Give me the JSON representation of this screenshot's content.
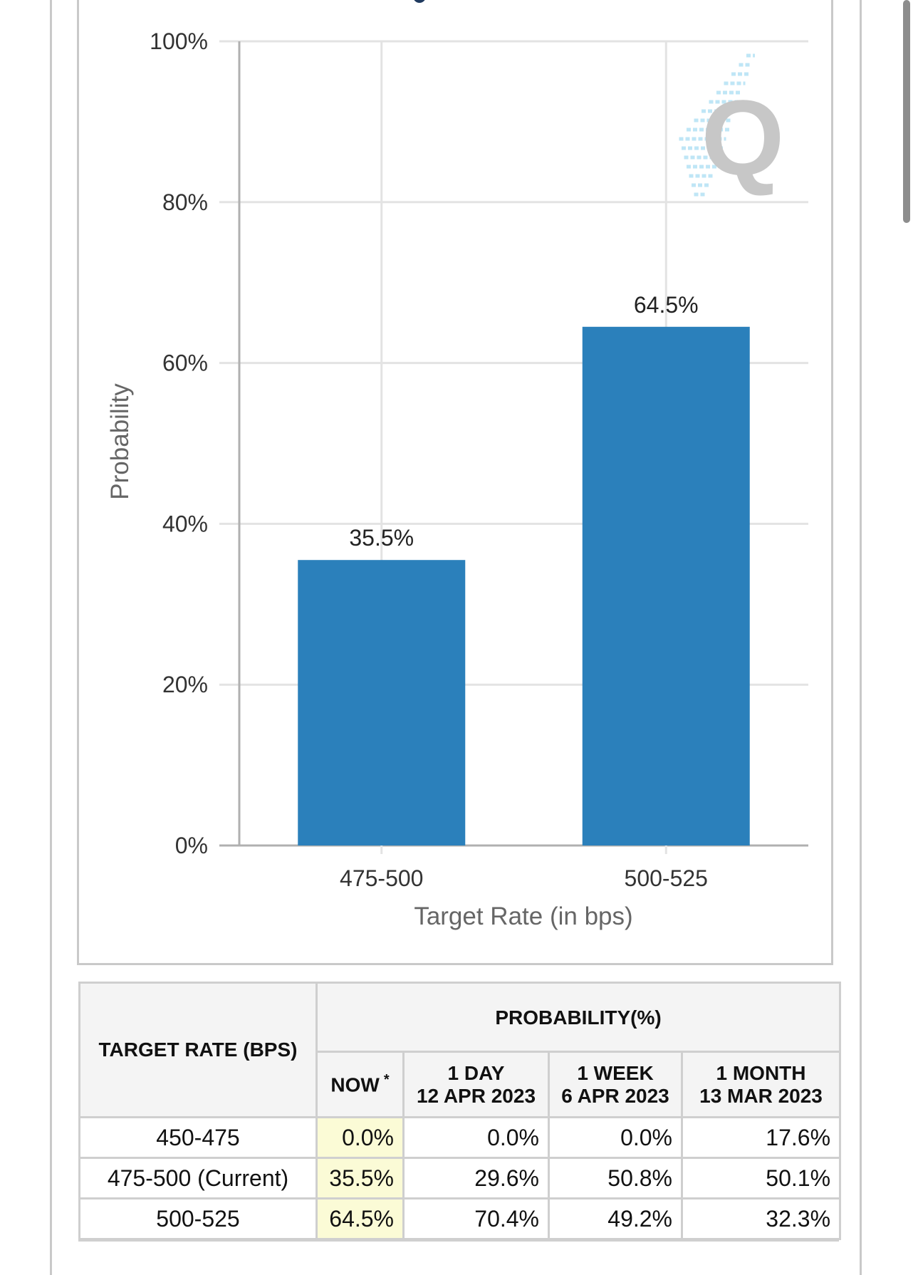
{
  "chart_data": {
    "type": "bar",
    "categories": [
      "475-500",
      "500-525"
    ],
    "values": [
      35.5,
      64.5
    ],
    "data_labels": [
      "35.5%",
      "64.5%"
    ],
    "xlabel": "Target Rate (in bps)",
    "ylabel": "Probability",
    "ylim": [
      0,
      100
    ],
    "yticks": [
      0,
      20,
      40,
      60,
      80,
      100
    ],
    "ytick_labels": [
      "0%",
      "20%",
      "40%",
      "60%",
      "80%",
      "100%"
    ],
    "grid": true,
    "bar_color": "#2b80bb"
  },
  "table": {
    "rate_header": "TARGET RATE (BPS)",
    "prob_header": "PROBABILITY(%)",
    "columns": [
      {
        "line1": "NOW",
        "line2": "",
        "sup": "*"
      },
      {
        "line1": "1 DAY",
        "line2": "12 APR 2023"
      },
      {
        "line1": "1 WEEK",
        "line2": "6 APR 2023"
      },
      {
        "line1": "1 MONTH",
        "line2": "13 MAR 2023"
      }
    ],
    "rows": [
      {
        "rate": "450-475",
        "now": "0.0%",
        "day": "0.0%",
        "week": "0.0%",
        "month": "17.6%"
      },
      {
        "rate": "475-500 (Current)",
        "now": "35.5%",
        "day": "29.6%",
        "week": "50.8%",
        "month": "50.1%"
      },
      {
        "rate": "500-525",
        "now": "64.5%",
        "day": "70.4%",
        "week": "49.2%",
        "month": "32.3%"
      }
    ],
    "now_highlight_color": "#fbfbd6"
  }
}
